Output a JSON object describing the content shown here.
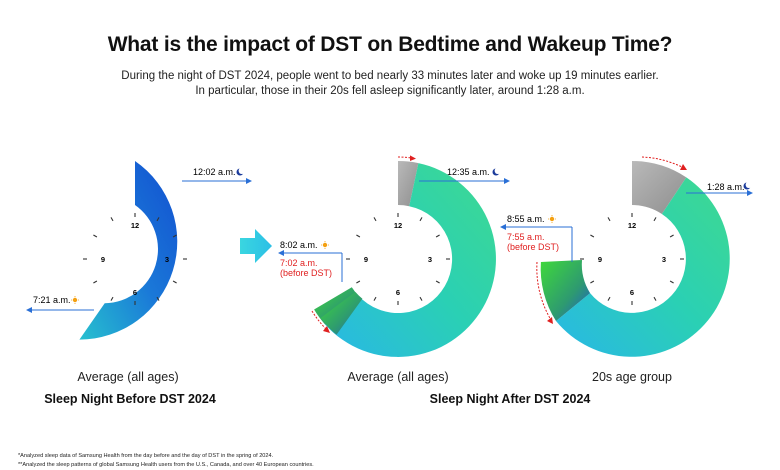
{
  "title": "What is the impact of DST on Bedtime and Wakeup Time?",
  "subtitle_line1": "During the night of DST 2024, people went to bed nearly 33 minutes later and woke up 19 minutes earlier.",
  "subtitle_line2": "In particular, those in their 20s fell asleep significantly later, around 1:28 a.m.",
  "clock_numbers": {
    "twelve": "12",
    "three": "3",
    "six": "6",
    "nine": "9"
  },
  "clocks": [
    {
      "caption": "Average (all ages)",
      "bedtime": "12:02 a.m.",
      "wakeup": "7:21 a.m."
    },
    {
      "caption": "Average (all ages)",
      "bedtime": "12:35 a.m.",
      "wakeup": "8:02 a.m.",
      "wakeup_before_line1": "7:02 a.m.",
      "wakeup_before_line2": "(before DST)"
    },
    {
      "caption": "20s age group",
      "bedtime": "1:28 a.m.",
      "wakeup": "8:55 a.m.",
      "wakeup_before_line1": "7:55 a.m.",
      "wakeup_before_line2": "(before DST)"
    }
  ],
  "groups": {
    "before": "Sleep Night Before DST 2024",
    "after": "Sleep Night After DST 2024"
  },
  "footnotes": [
    "*Analyzed sleep data of Samsung Health from the day before and the day of DST in the spring of 2024.",
    "**Analyzed the sleep patterns of global Samsung Health users from the U.S., Canada, and over 40 European countries."
  ],
  "colors": {
    "blue_dark": "#1457d6",
    "teal": "#2fcfa8",
    "cyan": "#27b6dd",
    "green": "#3dd13a",
    "grey": "#a9a9a9",
    "arrow_blue": "#2a6fd6",
    "red": "#e02020",
    "sun": "#f4a011",
    "moon": "#1a3a9a"
  },
  "icons": {
    "moon": "moon-icon",
    "sun": "sun-icon",
    "arrow": "transition-arrow-icon"
  }
}
